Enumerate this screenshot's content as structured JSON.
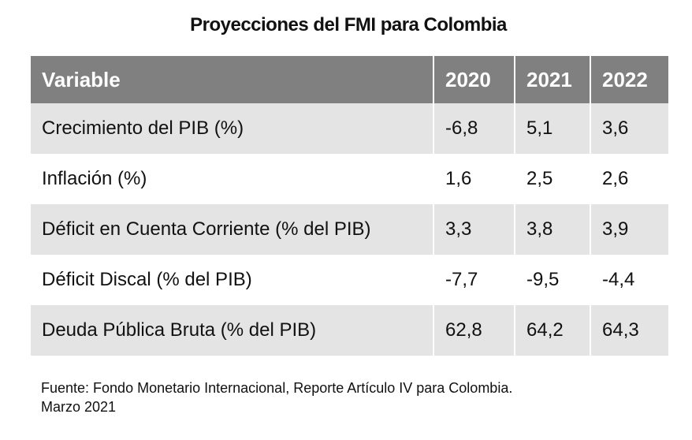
{
  "chart_data": {
    "type": "table",
    "title": "Proyecciones del FMI para Colombia",
    "columns": [
      "Variable",
      "2020",
      "2021",
      "2022"
    ],
    "rows": [
      {
        "variable": "Crecimiento del PIB (%)",
        "values": [
          "-6,8",
          "5,1",
          "3,6"
        ]
      },
      {
        "variable": "Inflación (%)",
        "values": [
          "1,6",
          "2,5",
          "2,6"
        ]
      },
      {
        "variable": "Déficit en Cuenta Corriente (% del PIB)",
        "values": [
          "3,3",
          "3,8",
          "3,9"
        ]
      },
      {
        "variable": "Déficit Discal (% del PIB)",
        "values": [
          "-7,7",
          "-9,5",
          "-4,4"
        ]
      },
      {
        "variable": "Deuda Pública Bruta (% del PIB)",
        "values": [
          "62,8",
          "64,2",
          "64,3"
        ]
      }
    ],
    "source_line1": "Fuente: Fondo Monetario Internacional, Reporte Artículo IV para Colombia.",
    "source_line2": "Marzo 2021"
  },
  "colors": {
    "header_bg": "#808080",
    "header_text": "#ffffff",
    "shaded_row": "#e4e4e4"
  }
}
